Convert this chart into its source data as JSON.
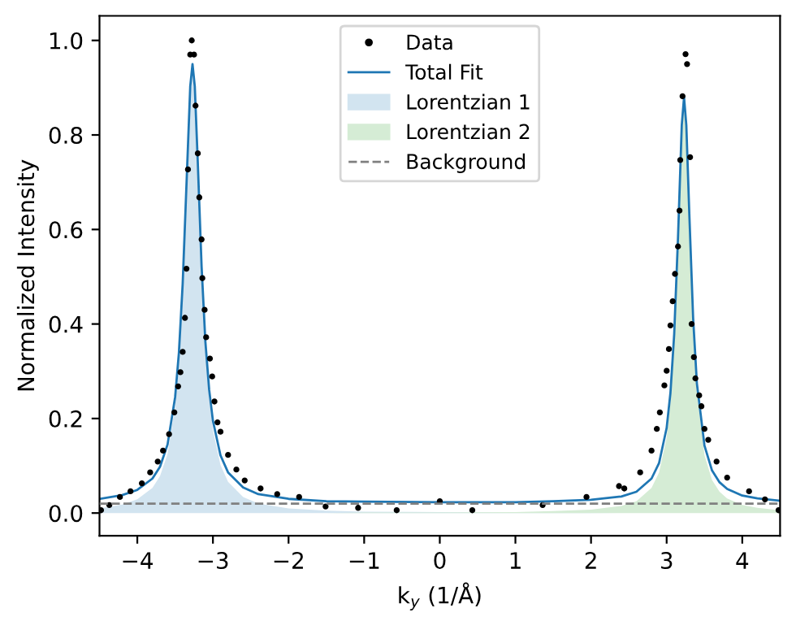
{
  "chart_data": {
    "type": "line",
    "xlabel": "k$_{y}$ (1/Å)",
    "ylabel": "Normalized Intensity",
    "xlim": [
      -4.5,
      4.5
    ],
    "ylim": [
      -0.048,
      1.052
    ],
    "xticks": [
      -4,
      -3,
      -2,
      -1,
      0,
      1,
      2,
      3,
      4
    ],
    "yticks": [
      {
        "value": 0,
        "label": "0.0"
      },
      {
        "value": 0.2,
        "label": "0.2"
      },
      {
        "value": 0.4,
        "label": "0.4"
      },
      {
        "value": 0.6,
        "label": "0.6"
      },
      {
        "value": 0.8,
        "label": "0.8"
      },
      {
        "value": 1,
        "label": "1.0"
      }
    ],
    "grid": false,
    "legend": "top",
    "series": [
      {
        "name": "Data",
        "type": "scatter",
        "color": "#000000",
        "marker": "circle",
        "x": [
          -4.48,
          -4.37,
          -4.23,
          -4.09,
          -3.94,
          -3.83,
          -3.73,
          -3.66,
          -3.58,
          -3.51,
          -3.46,
          -3.43,
          -3.4,
          -3.37,
          -3.35,
          -3.33,
          -3.3,
          -3.28,
          -3.25,
          -3.23,
          -3.2,
          -3.18,
          -3.15,
          -3.14,
          -3.11,
          -3.09,
          -3.04,
          -3.01,
          -2.98,
          -2.94,
          -2.9,
          -2.8,
          -2.69,
          -2.58,
          -2.37,
          -2.15,
          -1.86,
          -1.51,
          -1.08,
          -0.57,
          0,
          0.43,
          1.36,
          1.94,
          2.37,
          2.44,
          2.65,
          2.8,
          2.87,
          2.91,
          2.97,
          3.0,
          3.03,
          3.05,
          3.08,
          3.11,
          3.15,
          3.17,
          3.18,
          3.21,
          3.25,
          3.27,
          3.31,
          3.33,
          3.36,
          3.38,
          3.43,
          3.46,
          3.5,
          3.55,
          3.66,
          3.8,
          4.09,
          4.3,
          4.48
        ],
        "values": [
          0.006,
          0.017,
          0.034,
          0.046,
          0.063,
          0.086,
          0.109,
          0.132,
          0.167,
          0.213,
          0.268,
          0.298,
          0.341,
          0.413,
          0.517,
          0.727,
          0.97,
          1.0,
          0.97,
          0.862,
          0.761,
          0.668,
          0.579,
          0.497,
          0.43,
          0.372,
          0.327,
          0.289,
          0.236,
          0.192,
          0.172,
          0.123,
          0.092,
          0.069,
          0.052,
          0.04,
          0.034,
          0.014,
          0.011,
          0.006,
          0.025,
          0.006,
          0.017,
          0.034,
          0.057,
          0.052,
          0.086,
          0.132,
          0.178,
          0.213,
          0.27,
          0.301,
          0.347,
          0.397,
          0.448,
          0.506,
          0.564,
          0.64,
          0.747,
          0.882,
          0.971,
          0.95,
          0.753,
          0.4,
          0.33,
          0.285,
          0.249,
          0.226,
          0.178,
          0.155,
          0.109,
          0.075,
          0.046,
          0.029,
          0.006
        ]
      },
      {
        "name": "Total Fit",
        "color": "#1f77b4",
        "x": [
          -4.5,
          -4.2,
          -4.0,
          -3.8,
          -3.7,
          -3.6,
          -3.5,
          -3.45,
          -3.4,
          -3.35,
          -3.3,
          -3.27,
          -3.24,
          -3.2,
          -3.15,
          -3.1,
          -3.05,
          -3.0,
          -2.9,
          -2.8,
          -2.6,
          -2.4,
          -2.0,
          -1.5,
          -1.0,
          0,
          1.0,
          1.5,
          2.0,
          2.4,
          2.6,
          2.8,
          2.9,
          3.0,
          3.05,
          3.1,
          3.15,
          3.2,
          3.23,
          3.26,
          3.3,
          3.35,
          3.4,
          3.5,
          3.6,
          3.7,
          3.8,
          4.0,
          4.2,
          4.5
        ],
        "values": [
          0.03,
          0.038,
          0.049,
          0.073,
          0.098,
          0.145,
          0.245,
          0.339,
          0.485,
          0.694,
          0.903,
          0.95,
          0.903,
          0.741,
          0.522,
          0.363,
          0.261,
          0.195,
          0.122,
          0.086,
          0.054,
          0.04,
          0.03,
          0.025,
          0.024,
          0.023,
          0.023,
          0.025,
          0.028,
          0.035,
          0.045,
          0.073,
          0.106,
          0.18,
          0.254,
          0.379,
          0.582,
          0.821,
          0.88,
          0.821,
          0.632,
          0.413,
          0.274,
          0.143,
          0.09,
          0.065,
          0.051,
          0.037,
          0.031,
          0.026
        ]
      },
      {
        "name": "Lorentzian 1",
        "type": "area",
        "color": "#d2e4f0",
        "x": [
          -4.5,
          -4.2,
          -4.0,
          -3.8,
          -3.7,
          -3.6,
          -3.5,
          -3.45,
          -3.4,
          -3.35,
          -3.3,
          -3.27,
          -3.24,
          -3.2,
          -3.15,
          -3.1,
          -3.05,
          -3.0,
          -2.9,
          -2.8,
          -2.6,
          -2.4,
          -2.0,
          -1.5,
          -1.0,
          0,
          1.0,
          2.4,
          4.5
        ],
        "values": [
          0.01,
          0.018,
          0.029,
          0.053,
          0.078,
          0.125,
          0.225,
          0.319,
          0.465,
          0.674,
          0.883,
          0.93,
          0.883,
          0.721,
          0.502,
          0.343,
          0.241,
          0.175,
          0.102,
          0.066,
          0.034,
          0.02,
          0.01,
          0.005,
          0.003,
          0.002,
          0.001,
          0,
          0
        ]
      },
      {
        "name": "Lorentzian 2",
        "type": "area",
        "color": "#d5ecd5",
        "x": [
          -4.5,
          -1.5,
          -1.0,
          0,
          1.0,
          1.5,
          2.0,
          2.4,
          2.6,
          2.8,
          2.9,
          3.0,
          3.05,
          3.1,
          3.15,
          3.2,
          3.23,
          3.26,
          3.3,
          3.35,
          3.4,
          3.5,
          3.6,
          3.7,
          3.8,
          4.0,
          4.2,
          4.5
        ],
        "values": [
          0,
          0,
          0.001,
          0.001,
          0.002,
          0.004,
          0.007,
          0.015,
          0.025,
          0.053,
          0.086,
          0.16,
          0.234,
          0.359,
          0.562,
          0.801,
          0.86,
          0.801,
          0.612,
          0.393,
          0.254,
          0.123,
          0.07,
          0.045,
          0.031,
          0.017,
          0.011,
          0.006
        ]
      },
      {
        "name": "Background",
        "color": "#808080",
        "line_style": "dashed",
        "x": [
          -4.5,
          4.5
        ],
        "values": [
          0.02,
          0.02
        ]
      }
    ]
  }
}
